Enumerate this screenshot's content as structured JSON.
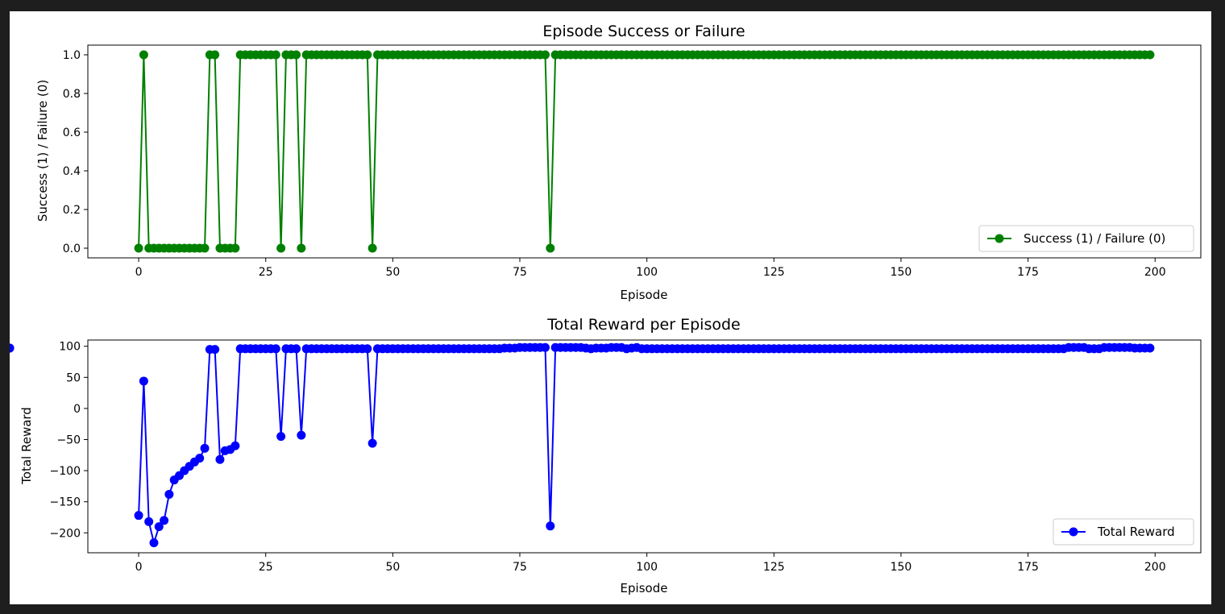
{
  "chart_data": [
    {
      "type": "line",
      "title": "Episode Success or Failure",
      "xlabel": "Episode",
      "ylabel": "Success (1) / Failure (0)",
      "xlim": [
        -10,
        209
      ],
      "ylim": [
        -0.05,
        1.05
      ],
      "xticks": [
        0,
        25,
        50,
        75,
        100,
        125,
        150,
        175,
        200
      ],
      "yticks": [
        0.0,
        0.2,
        0.4,
        0.6,
        0.8,
        1.0
      ],
      "ytick_labels": [
        "0.0",
        "0.2",
        "0.4",
        "0.6",
        "0.8",
        "1.0"
      ],
      "grid": false,
      "legend_position": "lower-right",
      "color": "#008000",
      "marker": "circle",
      "series": [
        {
          "name": "Success (1) / Failure (0)",
          "x_range": [
            0,
            199
          ],
          "values": [
            0,
            1,
            0,
            0,
            0,
            0,
            0,
            0,
            0,
            0,
            0,
            0,
            0,
            0,
            1,
            1,
            0,
            0,
            0,
            0,
            1,
            1,
            1,
            1,
            1,
            1,
            1,
            1,
            0,
            1,
            1,
            1,
            0,
            1,
            1,
            1,
            1,
            1,
            1,
            1,
            1,
            1,
            1,
            1,
            1,
            1,
            0,
            1,
            1,
            1,
            1,
            1,
            1,
            1,
            1,
            1,
            1,
            1,
            1,
            1,
            1,
            1,
            1,
            1,
            1,
            1,
            1,
            1,
            1,
            1,
            1,
            1,
            1,
            1,
            1,
            1,
            1,
            1,
            1,
            1,
            1,
            0,
            1,
            1,
            1,
            1,
            1,
            1,
            1,
            1,
            1,
            1,
            1,
            1,
            1,
            1,
            1,
            1,
            1,
            1,
            1,
            1,
            1,
            1,
            1,
            1,
            1,
            1,
            1,
            1,
            1,
            1,
            1,
            1,
            1,
            1,
            1,
            1,
            1,
            1,
            1,
            1,
            1,
            1,
            1,
            1,
            1,
            1,
            1,
            1,
            1,
            1,
            1,
            1,
            1,
            1,
            1,
            1,
            1,
            1,
            1,
            1,
            1,
            1,
            1,
            1,
            1,
            1,
            1,
            1,
            1,
            1,
            1,
            1,
            1,
            1,
            1,
            1,
            1,
            1,
            1,
            1,
            1,
            1,
            1,
            1,
            1,
            1,
            1,
            1,
            1,
            1,
            1,
            1,
            1,
            1,
            1,
            1,
            1,
            1,
            1,
            1,
            1,
            1,
            1,
            1,
            1,
            1,
            1,
            1,
            1,
            1,
            1,
            1,
            1,
            1,
            1,
            1,
            1,
            1
          ]
        }
      ]
    },
    {
      "type": "line",
      "title": "Total Reward per Episode",
      "xlabel": "Episode",
      "ylabel": "Total Reward",
      "xlim": [
        -10,
        209
      ],
      "ylim": [
        -232,
        110
      ],
      "xticks": [
        0,
        25,
        50,
        75,
        100,
        125,
        150,
        175,
        200
      ],
      "yticks": [
        -200,
        -150,
        -100,
        -50,
        0,
        50,
        100
      ],
      "ytick_labels": [
        "−200",
        "−150",
        "−100",
        "−50",
        "0",
        "50",
        "100"
      ],
      "grid": false,
      "legend_position": "lower-right",
      "color": "#0000ff",
      "marker": "circle",
      "series": [
        {
          "name": "Total Reward",
          "x_range": [
            0,
            199
          ],
          "values": [
            -172,
            44,
            -182,
            -216,
            -190,
            -180,
            -138,
            -115,
            -108,
            -100,
            -93,
            -86,
            -80,
            -64,
            95,
            95,
            -82,
            -68,
            -66,
            -60,
            96,
            96,
            96,
            96,
            96,
            96,
            96,
            96,
            -45,
            96,
            96,
            96,
            -43,
            96,
            96,
            96,
            96,
            96,
            96,
            96,
            96,
            96,
            96,
            96,
            96,
            96,
            -56,
            96,
            96,
            96,
            96,
            96,
            96,
            96,
            96,
            96,
            96,
            96,
            96,
            96,
            96,
            96,
            96,
            96,
            96,
            96,
            96,
            96,
            96,
            96,
            96,
            96,
            97,
            97,
            97,
            98,
            98,
            98,
            98,
            98,
            98,
            -189,
            98,
            98,
            98,
            98,
            98,
            98,
            97,
            96,
            97,
            97,
            97,
            98,
            98,
            98,
            96,
            97,
            98,
            96,
            96,
            96,
            96,
            96,
            96,
            96,
            96,
            96,
            96,
            96,
            96,
            96,
            96,
            96,
            96,
            96,
            96,
            96,
            96,
            96,
            96,
            96,
            96,
            96,
            96,
            96,
            96,
            96,
            96,
            96,
            96,
            96,
            96,
            96,
            96,
            96,
            96,
            96,
            96,
            96,
            96,
            96,
            96,
            96,
            96,
            96,
            96,
            96,
            96,
            96,
            96,
            96,
            96,
            96,
            96,
            96,
            96,
            96,
            96,
            96,
            96,
            96,
            96,
            96,
            96,
            96,
            96,
            96,
            96,
            96,
            96,
            96,
            96,
            96,
            96,
            96,
            96,
            96,
            96,
            96,
            96,
            96,
            96,
            98,
            98,
            98,
            98,
            96,
            96,
            96,
            98,
            98,
            98,
            98,
            98,
            98,
            97,
            97,
            97,
            97,
            97,
            97,
            97
          ]
        }
      ]
    }
  ]
}
